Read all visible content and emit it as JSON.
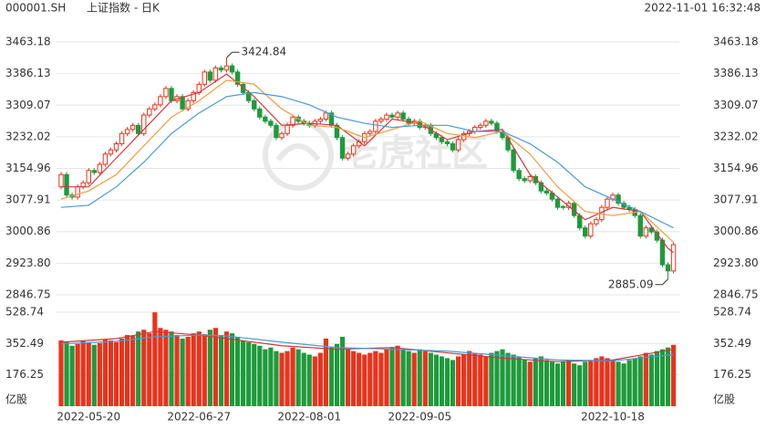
{
  "chart_data": {
    "type": "candlestick",
    "symbol": "000001.SH",
    "name": "上证指数 - 日K",
    "timestamp": "2022-11-01 16:32:48",
    "watermark": "老虎社区",
    "volume_unit": "亿股",
    "up_color": "#e8341c",
    "down_color": "#1f9a3c",
    "grid": true,
    "ylim": [
      2846.75,
      3463.18
    ],
    "yticks": [
      3463.18,
      3386.13,
      3309.07,
      3232.02,
      3154.96,
      3077.91,
      3000.86,
      {
        "value": 2923.8,
        "label": "2923.80"
      },
      2846.75
    ],
    "volume_ylim": [
      0,
      528.74
    ],
    "volume_yticks": [
      528.74,
      352.49,
      176.25
    ],
    "categories": [
      null,
      null,
      null,
      null,
      null,
      "2022-05-20",
      null,
      null,
      null,
      null,
      null,
      null,
      null,
      null,
      null,
      null,
      null,
      null,
      null,
      null,
      null,
      null,
      null,
      null,
      null,
      "2022-06-27",
      null,
      null,
      null,
      null,
      null,
      null,
      null,
      null,
      null,
      null,
      null,
      null,
      null,
      null,
      null,
      null,
      null,
      null,
      null,
      "2022-08-01",
      null,
      null,
      null,
      null,
      null,
      null,
      null,
      null,
      null,
      null,
      null,
      null,
      null,
      null,
      null,
      null,
      null,
      null,
      null,
      "2022-09-05",
      null,
      null,
      null,
      null,
      null,
      null,
      null,
      null,
      null,
      null,
      null,
      null,
      null,
      null,
      null,
      null,
      null,
      null,
      null,
      null,
      null,
      null,
      null,
      null,
      null,
      null,
      null,
      null,
      null,
      null,
      null,
      null,
      null,
      null,
      "2022-10-18",
      null,
      null,
      null,
      null,
      null,
      null,
      null,
      null,
      null,
      null,
      null
    ],
    "ohlc": [
      [
        3110,
        3146,
        3104,
        3140
      ],
      [
        3140,
        3146,
        3084,
        3090
      ],
      [
        3090,
        3096,
        3079,
        3085
      ],
      [
        3085,
        3116,
        3079,
        3110
      ],
      [
        3110,
        3126,
        3104,
        3120
      ],
      [
        3120,
        3156,
        3114,
        3150
      ],
      [
        3150,
        3156,
        3139,
        3145
      ],
      [
        3145,
        3171,
        3139,
        3165
      ],
      [
        3165,
        3196,
        3159,
        3190
      ],
      [
        3190,
        3206,
        3184,
        3200
      ],
      [
        3200,
        3221,
        3194,
        3215
      ],
      [
        3215,
        3246,
        3209,
        3240
      ],
      [
        3240,
        3256,
        3234,
        3250
      ],
      [
        3250,
        3266,
        3244,
        3260
      ],
      [
        3260,
        3266,
        3234,
        3240
      ],
      [
        3240,
        3291,
        3234,
        3285
      ],
      [
        3285,
        3306,
        3279,
        3300
      ],
      [
        3300,
        3316,
        3294,
        3310
      ],
      [
        3310,
        3336,
        3304,
        3330
      ],
      [
        3330,
        3356,
        3324,
        3350
      ],
      [
        3350,
        3356,
        3314,
        3320
      ],
      [
        3320,
        3336,
        3314,
        3330
      ],
      [
        3330,
        3336,
        3294,
        3300
      ],
      [
        3300,
        3326,
        3294,
        3320
      ],
      [
        3320,
        3346,
        3314,
        3340
      ],
      [
        3340,
        3366,
        3334,
        3360
      ],
      [
        3360,
        3396,
        3354,
        3390
      ],
      [
        3390,
        3396,
        3364,
        3370
      ],
      [
        3370,
        3406,
        3364,
        3400
      ],
      [
        3400,
        3406,
        3389,
        3395
      ],
      [
        3395,
        3424.84,
        3389,
        3405
      ],
      [
        3405,
        3411,
        3384,
        3390
      ],
      [
        3390,
        3396,
        3354,
        3360
      ],
      [
        3360,
        3366,
        3334,
        3340
      ],
      [
        3340,
        3346,
        3314,
        3320
      ],
      [
        3320,
        3326,
        3294,
        3300
      ],
      [
        3300,
        3306,
        3274,
        3280
      ],
      [
        3280,
        3286,
        3264,
        3270
      ],
      [
        3270,
        3276,
        3254,
        3260
      ],
      [
        3260,
        3266,
        3224,
        3230
      ],
      [
        3230,
        3246,
        3224,
        3240
      ],
      [
        3240,
        3266,
        3234,
        3260
      ],
      [
        3260,
        3286,
        3254,
        3280
      ],
      [
        3280,
        3286,
        3264,
        3270
      ],
      [
        3270,
        3276,
        3259,
        3265
      ],
      [
        3265,
        3271,
        3254,
        3260
      ],
      [
        3260,
        3276,
        3254,
        3270
      ],
      [
        3270,
        3281,
        3264,
        3275
      ],
      [
        3275,
        3296,
        3269,
        3290
      ],
      [
        3290,
        3296,
        3254,
        3260
      ],
      [
        3260,
        3266,
        3224,
        3230
      ],
      [
        3230,
        3236,
        3174,
        3180
      ],
      [
        3180,
        3196,
        3174,
        3190
      ],
      [
        3190,
        3216,
        3184,
        3210
      ],
      [
        3210,
        3226,
        3204,
        3220
      ],
      [
        3220,
        3246,
        3214,
        3240
      ],
      [
        3240,
        3251,
        3234,
        3245
      ],
      [
        3245,
        3276,
        3239,
        3270
      ],
      [
        3270,
        3281,
        3264,
        3275
      ],
      [
        3275,
        3291,
        3269,
        3285
      ],
      [
        3285,
        3291,
        3274,
        3280
      ],
      [
        3280,
        3296,
        3274,
        3290
      ],
      [
        3290,
        3296,
        3269,
        3275
      ],
      [
        3275,
        3281,
        3259,
        3265
      ],
      [
        3265,
        3276,
        3259,
        3270
      ],
      [
        3270,
        3276,
        3249,
        3255
      ],
      [
        3255,
        3266,
        3249,
        3260
      ],
      [
        3260,
        3266,
        3234,
        3240
      ],
      [
        3240,
        3246,
        3224,
        3230
      ],
      [
        3230,
        3236,
        3214,
        3220
      ],
      [
        3220,
        3226,
        3209,
        3215
      ],
      [
        3215,
        3221,
        3194,
        3200
      ],
      [
        3200,
        3231,
        3194,
        3225
      ],
      [
        3225,
        3246,
        3219,
        3240
      ],
      [
        3240,
        3251,
        3234,
        3245
      ],
      [
        3245,
        3261,
        3239,
        3255
      ],
      [
        3255,
        3266,
        3249,
        3260
      ],
      [
        3260,
        3276,
        3254,
        3270
      ],
      [
        3270,
        3276,
        3259,
        3265
      ],
      [
        3265,
        3271,
        3239,
        3245
      ],
      [
        3245,
        3251,
        3224,
        3230
      ],
      [
        3230,
        3236,
        3194,
        3200
      ],
      [
        3200,
        3206,
        3144,
        3150
      ],
      [
        3150,
        3156,
        3124,
        3130
      ],
      [
        3130,
        3136,
        3119,
        3125
      ],
      [
        3125,
        3141,
        3119,
        3135
      ],
      [
        3135,
        3141,
        3114,
        3120
      ],
      [
        3120,
        3126,
        3094,
        3100
      ],
      [
        3100,
        3106,
        3089,
        3095
      ],
      [
        3095,
        3101,
        3074,
        3080
      ],
      [
        3080,
        3086,
        3054,
        3060
      ],
      [
        3062,
        3066,
        3054,
        3060
      ],
      [
        3060,
        3076,
        3054,
        3070
      ],
      [
        3070,
        3076,
        3034,
        3040
      ],
      [
        3040,
        3046,
        3004,
        3010
      ],
      [
        3010,
        3016,
        2984,
        2990
      ],
      [
        2990,
        3026,
        2984,
        3020
      ],
      [
        3020,
        3036,
        3014,
        3030
      ],
      [
        3030,
        3066,
        3024,
        3060
      ],
      [
        3060,
        3086,
        3054,
        3080
      ],
      [
        3080,
        3096,
        3074,
        3090
      ],
      [
        3090,
        3096,
        3064,
        3070
      ],
      [
        3070,
        3076,
        3054,
        3060
      ],
      [
        3060,
        3066,
        3049,
        3055
      ],
      [
        3055,
        3061,
        3034,
        3040
      ],
      [
        3040,
        3046,
        2984,
        2990
      ],
      [
        2990,
        3016,
        2984,
        3010
      ],
      [
        3010,
        3016,
        2994,
        3000
      ],
      [
        3000,
        3006,
        2974,
        2980
      ],
      [
        2980,
        2986,
        2914,
        2920
      ],
      [
        2920,
        2926,
        2885.09,
        2905
      ],
      [
        2905,
        2975,
        2899,
        2969
      ]
    ],
    "volume": [
      370,
      360,
      340,
      350,
      365,
      360,
      345,
      355,
      375,
      370,
      360,
      380,
      400,
      395,
      420,
      430,
      410,
      528,
      440,
      430,
      420,
      400,
      380,
      390,
      410,
      420,
      405,
      430,
      440,
      400,
      420,
      410,
      390,
      370,
      360,
      350,
      340,
      320,
      330,
      310,
      300,
      310,
      330,
      320,
      300,
      290,
      280,
      300,
      380,
      330,
      350,
      390,
      320,
      310,
      300,
      290,
      300,
      310,
      300,
      320,
      330,
      340,
      320,
      310,
      300,
      320,
      310,
      300,
      290,
      280,
      270,
      260,
      280,
      290,
      310,
      300,
      290,
      280,
      300,
      310,
      320,
      300,
      290,
      280,
      260,
      250,
      270,
      280,
      260,
      250,
      240,
      250,
      260,
      240,
      230,
      250,
      260,
      270,
      280,
      270,
      260,
      250,
      240,
      260,
      270,
      280,
      300,
      290,
      310,
      320,
      330,
      345
    ],
    "moving_averages": [
      {
        "color": "#d0393b",
        "x": [
          0,
          5,
          10,
          15,
          20,
          25,
          30,
          35,
          40,
          45,
          50,
          55,
          60,
          65,
          70,
          75,
          80,
          85,
          90,
          95,
          100,
          105,
          110,
          111
        ],
        "values": [
          3110,
          3110,
          3180,
          3250,
          3320,
          3340,
          3385,
          3330,
          3260,
          3265,
          3260,
          3210,
          3275,
          3265,
          3225,
          3245,
          3250,
          3140,
          3085,
          3030,
          3060,
          3050,
          2960,
          2950
        ]
      },
      {
        "color": "#f29b3f",
        "x": [
          0,
          5,
          10,
          15,
          20,
          25,
          30,
          35,
          40,
          45,
          50,
          55,
          60,
          65,
          70,
          75,
          80,
          85,
          90,
          95,
          100,
          105,
          111
        ],
        "values": [
          3080,
          3100,
          3140,
          3210,
          3280,
          3320,
          3370,
          3360,
          3300,
          3260,
          3255,
          3230,
          3250,
          3270,
          3240,
          3230,
          3245,
          3190,
          3110,
          3050,
          3040,
          3050,
          2975
        ]
      },
      {
        "color": "#4a9ad6",
        "x": [
          0,
          5,
          10,
          15,
          20,
          25,
          30,
          35,
          40,
          45,
          50,
          55,
          60,
          65,
          70,
          75,
          80,
          85,
          90,
          95,
          100,
          105,
          111
        ],
        "values": [
          3060,
          3065,
          3110,
          3170,
          3240,
          3290,
          3330,
          3340,
          3330,
          3310,
          3280,
          3265,
          3255,
          3260,
          3260,
          3245,
          3245,
          3215,
          3170,
          3110,
          3080,
          3050,
          3010
        ]
      }
    ],
    "volume_moving_averages": [
      {
        "color": "#d0393b",
        "x": [
          0,
          10,
          17,
          25,
          30,
          40,
          50,
          60,
          70,
          80,
          90,
          100,
          111
        ],
        "values": [
          360,
          380,
          420,
          400,
          380,
          340,
          320,
          330,
          300,
          270,
          250,
          260,
          320
        ]
      },
      {
        "color": "#4a9ad6",
        "x": [
          0,
          10,
          17,
          25,
          30,
          40,
          50,
          60,
          70,
          80,
          90,
          100,
          111
        ],
        "values": [
          350,
          365,
          390,
          400,
          395,
          360,
          330,
          320,
          310,
          285,
          260,
          255,
          290
        ]
      }
    ]
  }
}
